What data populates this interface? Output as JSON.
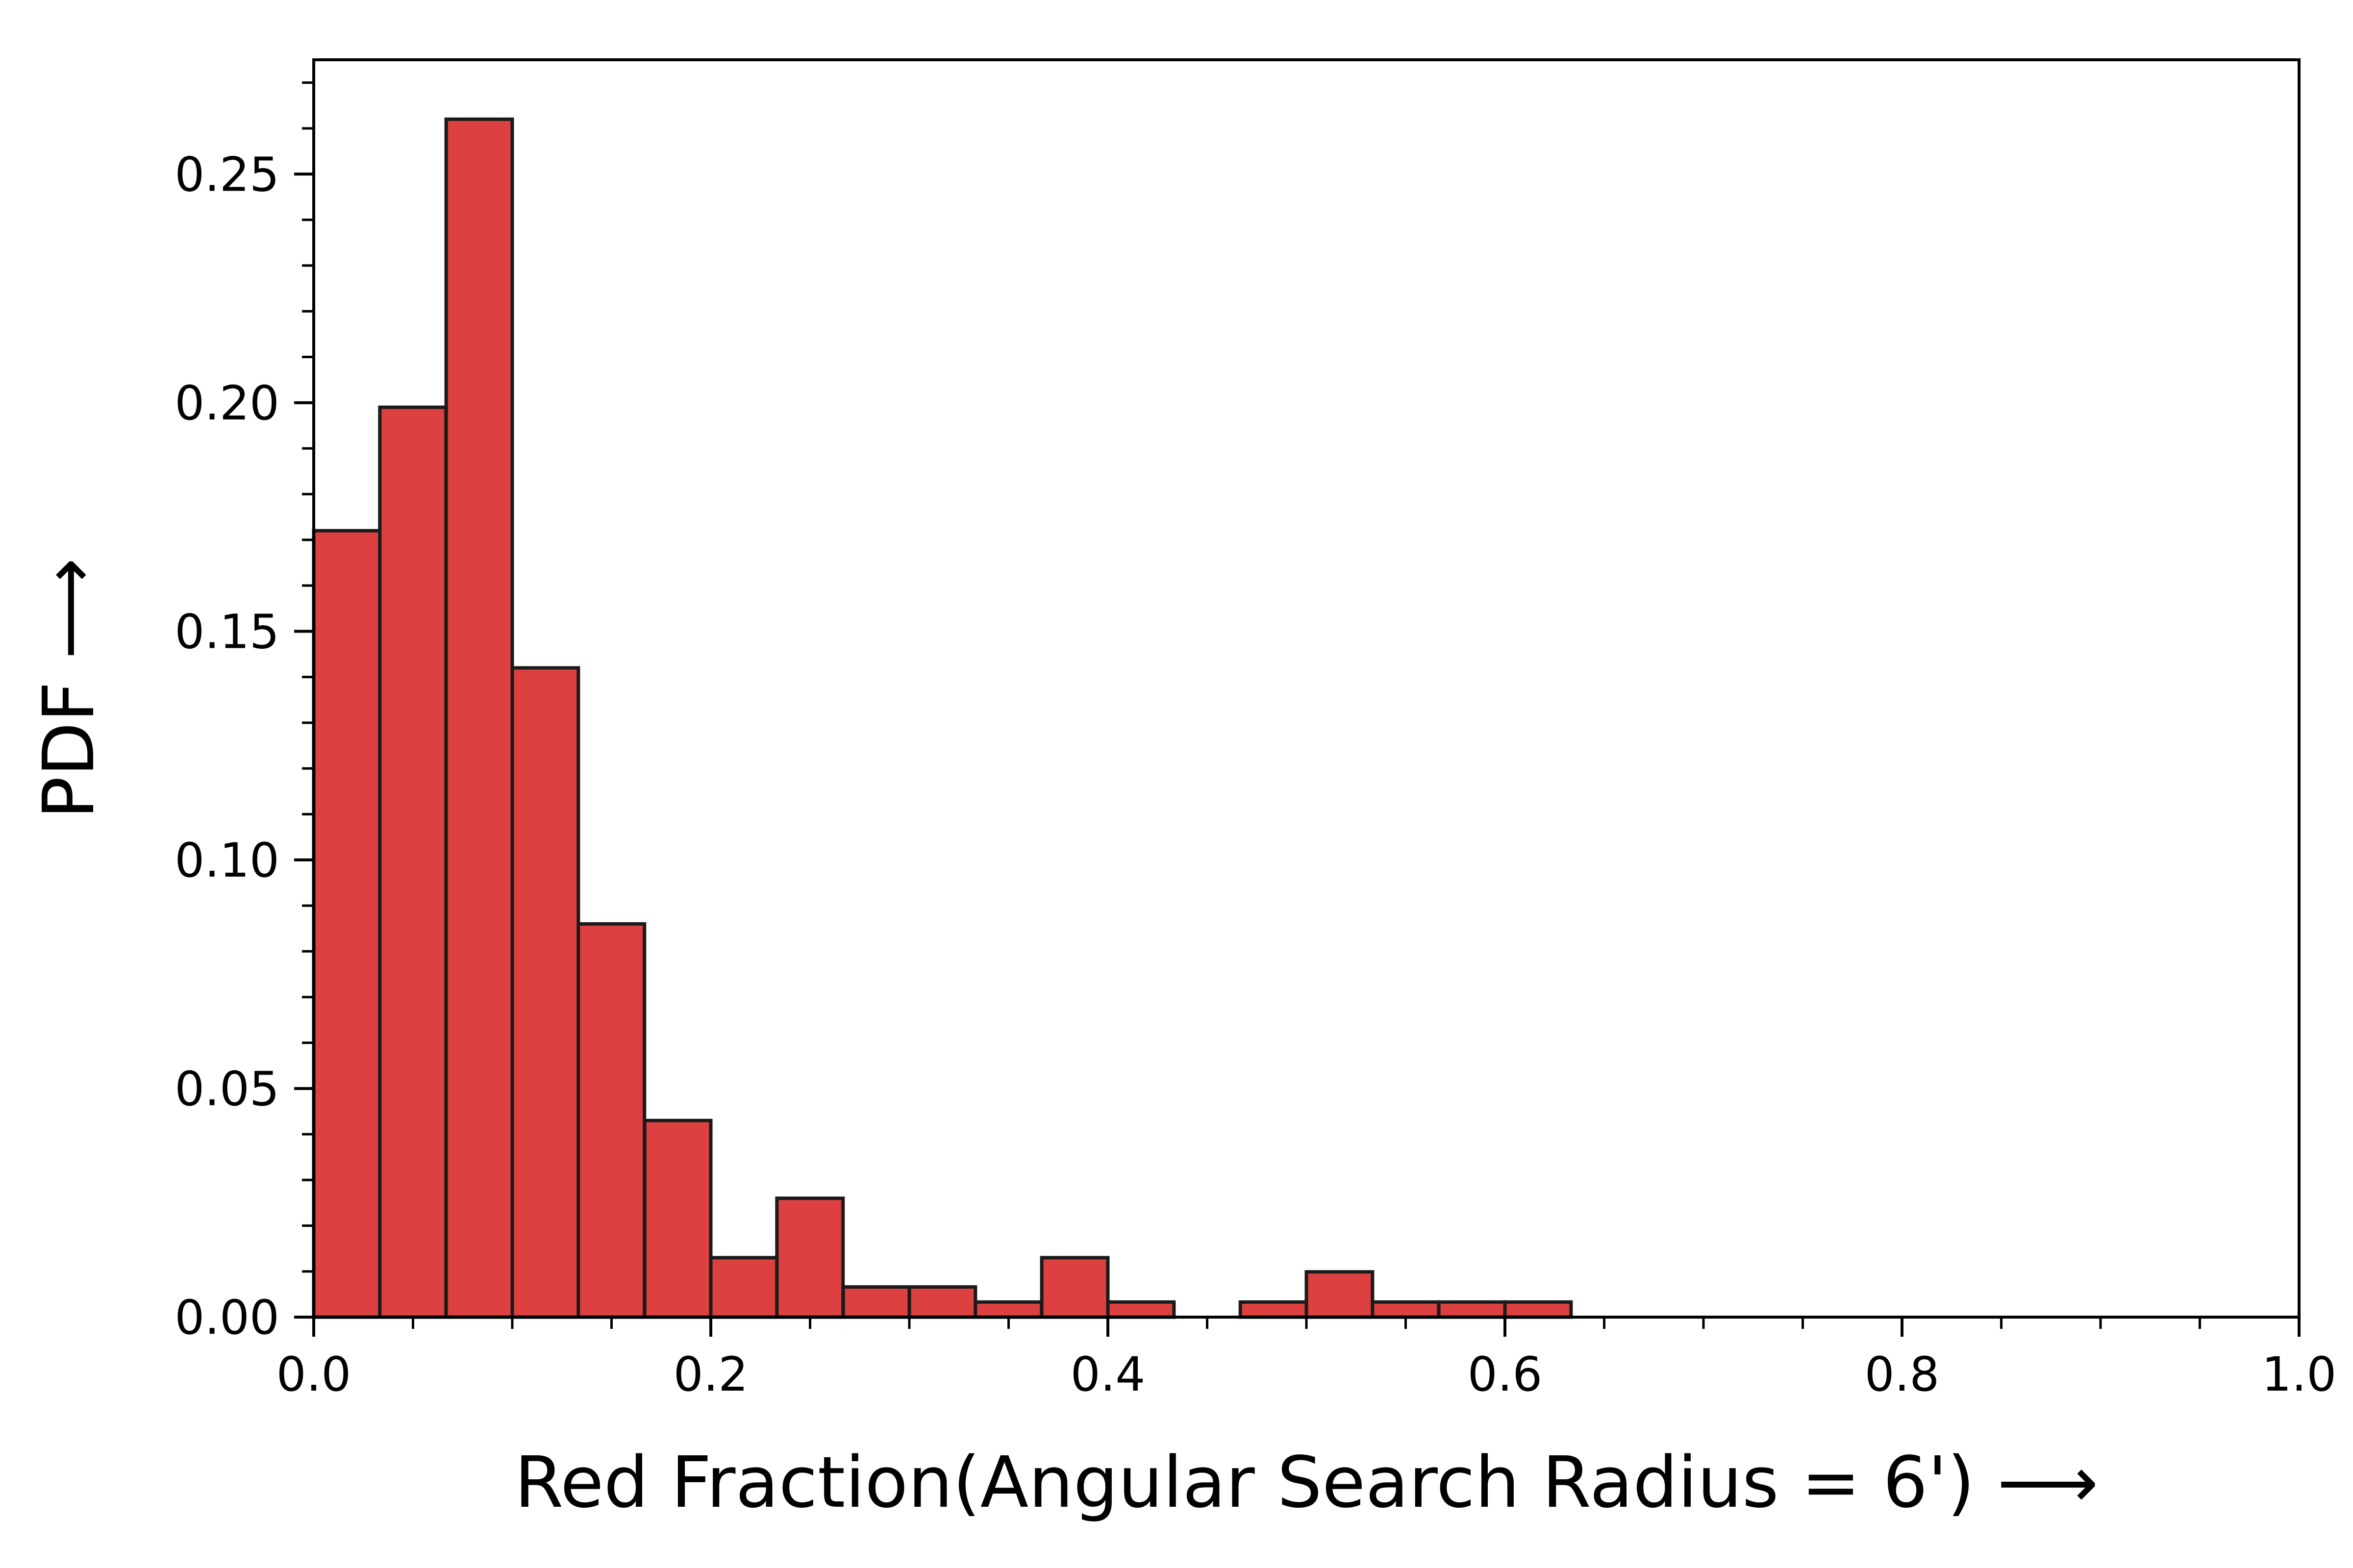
{
  "chart_data": {
    "type": "bar",
    "subtype": "histogram",
    "title": "",
    "xlabel": "Red Fraction(Angular Search Radius = 6')  ⟶",
    "ylabel": "PDF  ⟶",
    "xlim": [
      0.0,
      1.0
    ],
    "ylim": [
      0.0,
      0.275
    ],
    "x_ticks": [
      "0.0",
      "0.2",
      "0.4",
      "0.6",
      "0.8",
      "1.0"
    ],
    "y_ticks": [
      "0.00",
      "0.05",
      "0.10",
      "0.15",
      "0.20",
      "0.25"
    ],
    "bin_width": 0.0333,
    "bin_edges": [
      0.0,
      0.0333,
      0.0667,
      0.1,
      0.1333,
      0.1667,
      0.2,
      0.2333,
      0.2667,
      0.3,
      0.3333,
      0.3667,
      0.4,
      0.4333,
      0.4667,
      0.5,
      0.5333,
      0.5667,
      0.6,
      0.6333
    ],
    "values": [
      0.172,
      0.199,
      0.262,
      0.142,
      0.086,
      0.043,
      0.013,
      0.026,
      0.0066,
      0.0066,
      0.0033,
      0.013,
      0.0033,
      0.0,
      0.0033,
      0.0099,
      0.0033,
      0.0033,
      0.0033
    ],
    "grid": false,
    "legend": "none",
    "bar_color": "#dd4040",
    "edge_color": "#1a1a1a"
  }
}
